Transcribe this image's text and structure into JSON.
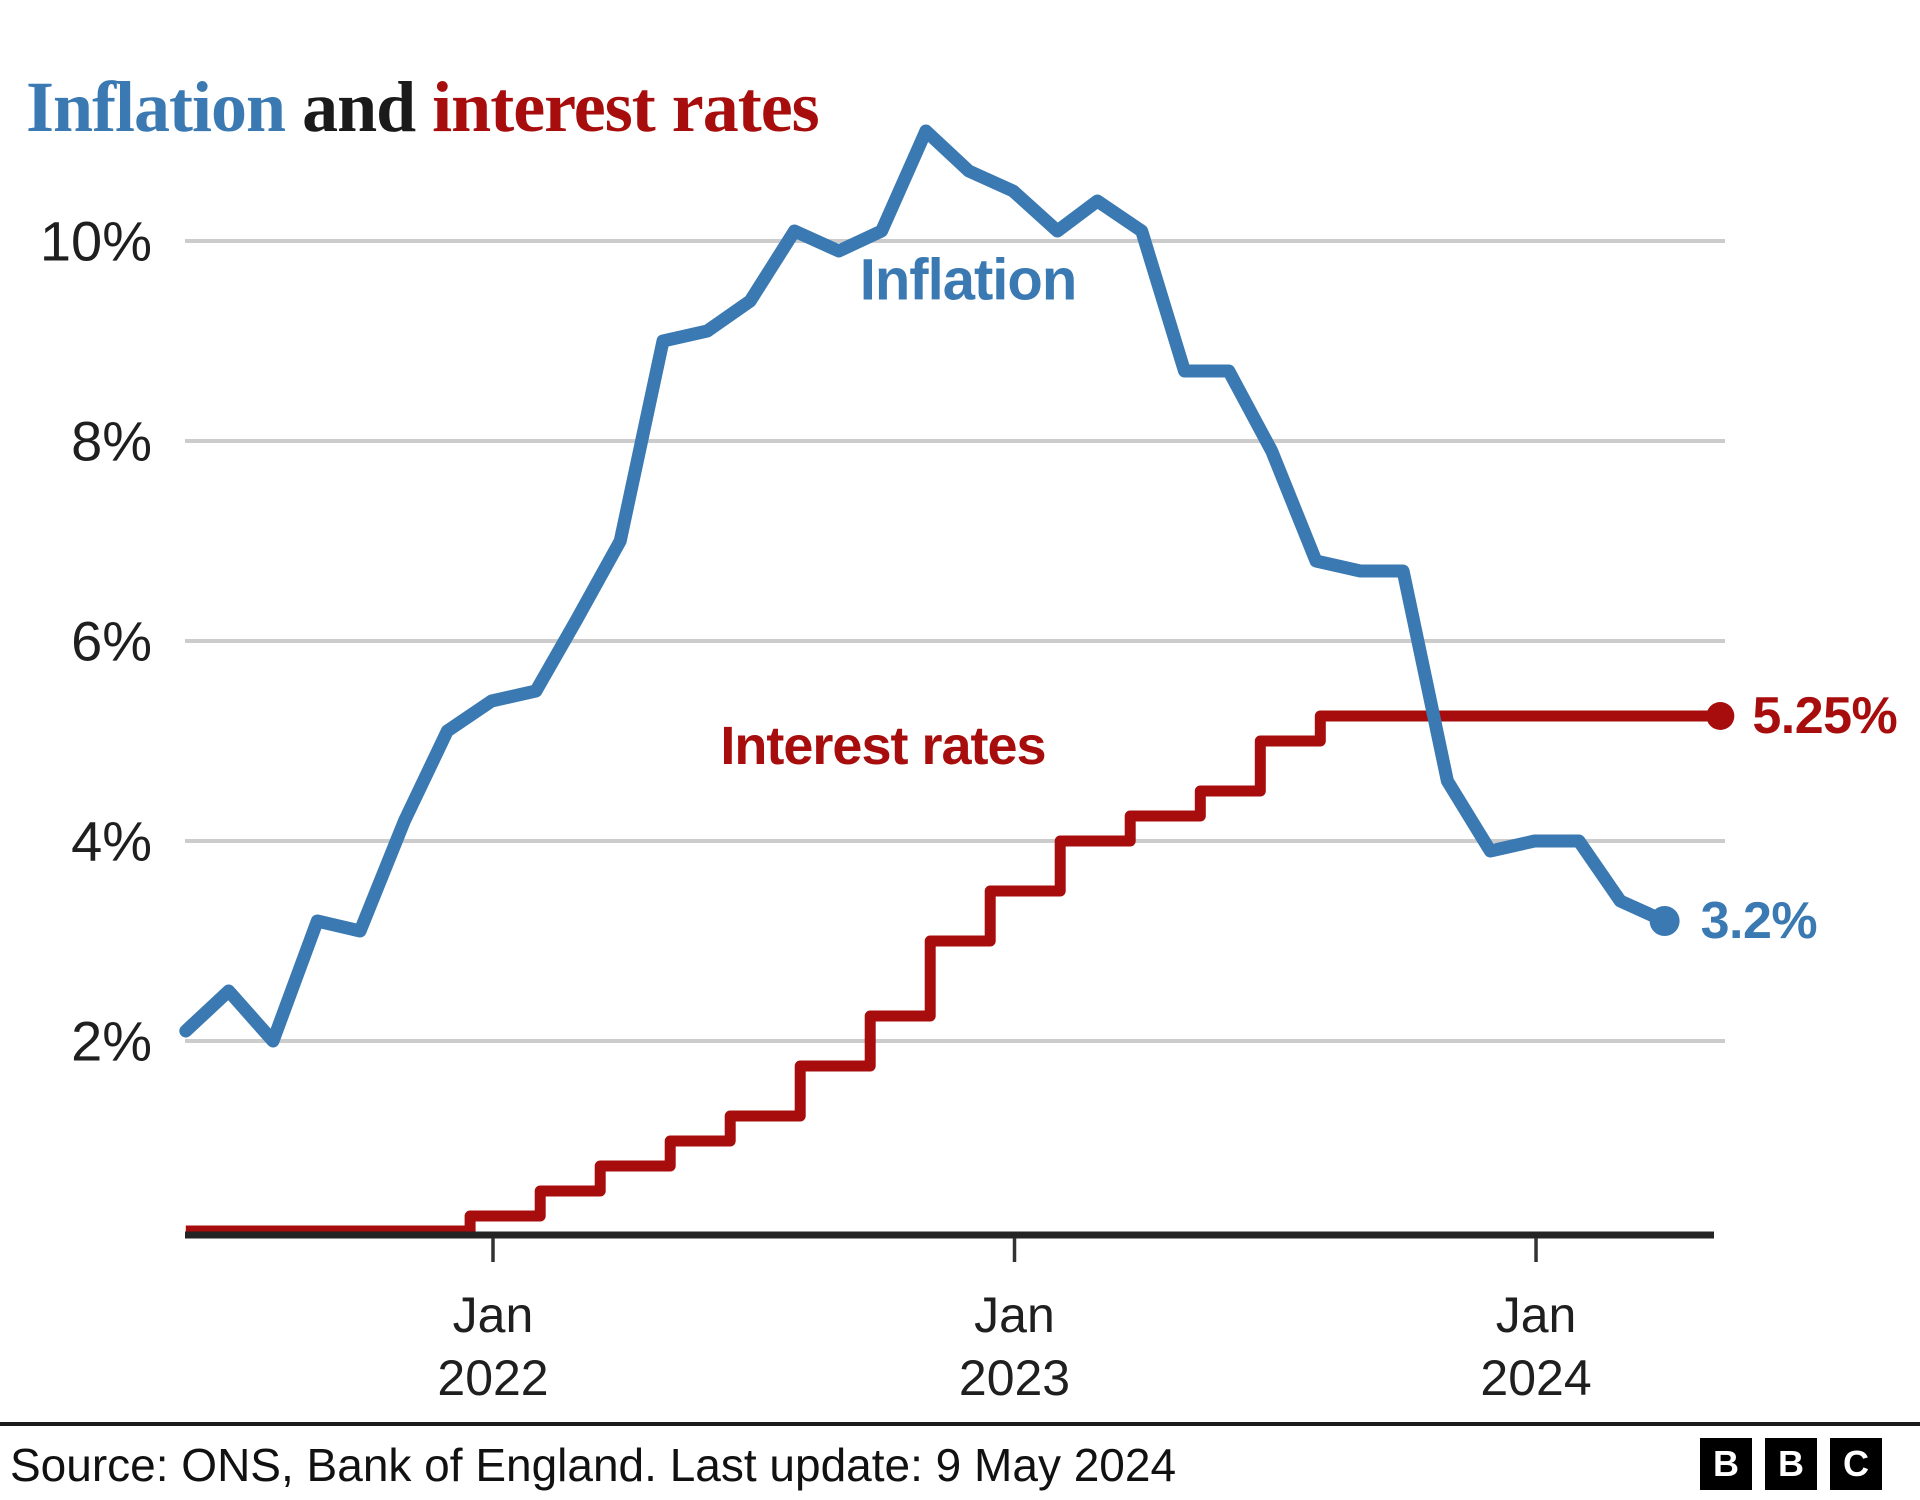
{
  "title": {
    "inflation": "Inflation",
    "and": " and ",
    "interest_rates": "interest rates"
  },
  "colors": {
    "inflation": "#3a79b2",
    "interest": "#a80d0d",
    "title_text": "#1a1a1a",
    "grid": "#cccccc",
    "axis": "#242424",
    "tick": "#333333",
    "label_text": "#1f1f1f"
  },
  "chart_data": {
    "type": "line",
    "title": "Inflation and interest rates",
    "xlabel": "",
    "ylabel": "",
    "ylim": [
      0,
      11.5
    ],
    "x_range": [
      "2021-05-31",
      "2024-05-09"
    ],
    "grid": true,
    "legend_position": "inline-annotations",
    "yticks": [
      {
        "value": 2,
        "label": "2%"
      },
      {
        "value": 4,
        "label": "4%"
      },
      {
        "value": 6,
        "label": "6%"
      },
      {
        "value": 8,
        "label": "8%"
      },
      {
        "value": 10,
        "label": "10%"
      }
    ],
    "xticks": [
      {
        "date": "2022-01-01",
        "line1": "Jan",
        "line2": "2022"
      },
      {
        "date": "2023-01-01",
        "line1": "Jan",
        "line2": "2023"
      },
      {
        "date": "2024-01-01",
        "line1": "Jan",
        "line2": "2024"
      }
    ],
    "series": [
      {
        "name": "Inflation",
        "style": "line",
        "color_key": "inflation",
        "label": "Inflation",
        "end_label": "3.2%",
        "points": [
          [
            "2021-05-31",
            2.1
          ],
          [
            "2021-06-30",
            2.5
          ],
          [
            "2021-07-31",
            2.0
          ],
          [
            "2021-08-31",
            3.2
          ],
          [
            "2021-09-30",
            3.1
          ],
          [
            "2021-10-31",
            4.2
          ],
          [
            "2021-11-30",
            5.1
          ],
          [
            "2021-12-31",
            5.4
          ],
          [
            "2022-01-31",
            5.5
          ],
          [
            "2022-02-28",
            6.2
          ],
          [
            "2022-03-31",
            7.0
          ],
          [
            "2022-04-30",
            9.0
          ],
          [
            "2022-05-31",
            9.1
          ],
          [
            "2022-06-30",
            9.4
          ],
          [
            "2022-07-31",
            10.1
          ],
          [
            "2022-08-31",
            9.9
          ],
          [
            "2022-09-30",
            10.1
          ],
          [
            "2022-10-31",
            11.1
          ],
          [
            "2022-11-30",
            10.7
          ],
          [
            "2022-12-31",
            10.5
          ],
          [
            "2023-01-31",
            10.1
          ],
          [
            "2023-02-28",
            10.4
          ],
          [
            "2023-03-31",
            10.1
          ],
          [
            "2023-04-30",
            8.7
          ],
          [
            "2023-05-31",
            8.7
          ],
          [
            "2023-06-30",
            7.9
          ],
          [
            "2023-07-31",
            6.8
          ],
          [
            "2023-08-31",
            6.7
          ],
          [
            "2023-09-30",
            6.7
          ],
          [
            "2023-10-31",
            4.6
          ],
          [
            "2023-11-30",
            3.9
          ],
          [
            "2023-12-31",
            4.0
          ],
          [
            "2024-01-31",
            4.0
          ],
          [
            "2024-02-29",
            3.4
          ],
          [
            "2024-03-31",
            3.2
          ]
        ]
      },
      {
        "name": "Interest rates",
        "style": "step",
        "color_key": "interest",
        "label": "Interest rates",
        "end_label": "5.25%",
        "end_date": "2024-05-09",
        "points": [
          [
            "2021-05-31",
            0.1
          ],
          [
            "2021-12-16",
            0.25
          ],
          [
            "2022-02-03",
            0.5
          ],
          [
            "2022-03-17",
            0.75
          ],
          [
            "2022-05-05",
            1.0
          ],
          [
            "2022-06-16",
            1.25
          ],
          [
            "2022-08-04",
            1.75
          ],
          [
            "2022-09-22",
            2.25
          ],
          [
            "2022-11-03",
            3.0
          ],
          [
            "2022-12-15",
            3.5
          ],
          [
            "2023-02-02",
            4.0
          ],
          [
            "2023-03-23",
            4.25
          ],
          [
            "2023-05-11",
            4.5
          ],
          [
            "2023-06-22",
            5.0
          ],
          [
            "2023-08-03",
            5.25
          ]
        ]
      }
    ]
  },
  "footer": {
    "source": "Source: ONS, Bank of England. Last update: 9 May 2024",
    "logo": [
      "B",
      "B",
      "C"
    ]
  }
}
